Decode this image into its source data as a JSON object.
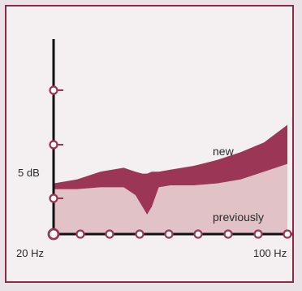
{
  "chart_data": {
    "type": "area",
    "x_ticks": [
      "20 Hz",
      "100 Hz"
    ],
    "y_ticks": [
      "5 dB"
    ],
    "x": [
      0,
      0.1,
      0.2,
      0.3,
      0.35,
      0.38,
      0.4,
      0.42,
      0.45,
      0.5,
      0.6,
      0.7,
      0.8,
      0.9,
      1.0
    ],
    "series": [
      {
        "name": "new",
        "values": [
          2.6,
          2.8,
          3.2,
          3.4,
          3.2,
          3.1,
          3.1,
          3.2,
          3.2,
          3.3,
          3.5,
          3.8,
          4.2,
          4.7,
          5.6
        ],
        "color": "#9b3656"
      },
      {
        "name": "previously",
        "values": [
          2.3,
          2.3,
          2.4,
          2.4,
          2.0,
          1.4,
          1.0,
          1.4,
          2.4,
          2.5,
          2.5,
          2.6,
          2.8,
          3.2,
          3.6
        ],
        "color": "#e0c2c7"
      }
    ],
    "ylim": [
      0,
      10
    ],
    "xlim": [
      0,
      1
    ],
    "grid": false
  },
  "colors": {
    "frame": "#8c2a47",
    "axis": "#111111",
    "marker_stroke": "#9b3656",
    "marker_fill": "#ffffff"
  }
}
